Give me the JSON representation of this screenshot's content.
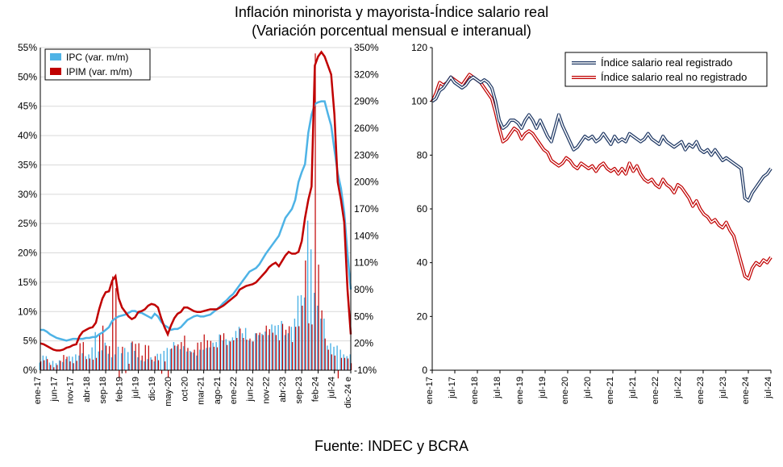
{
  "title_line1": "Inflación minorista y mayorista-Índice salario real",
  "title_line2": "(Variación porcentual mensual e interanual)",
  "source": "Fuente: INDEC y BCRA",
  "left_chart": {
    "type": "combo-bar-line-dual-axis",
    "background_color": "#ffffff",
    "grid_color": "#d9d9d9",
    "axis_color": "#000000",
    "y_left": {
      "min": 0,
      "max": 55,
      "step": 5,
      "suffix": "%",
      "label_fontsize": 12
    },
    "y_right": {
      "min": -10,
      "max": 350,
      "step": 30,
      "suffix": "%",
      "label_fontsize": 12
    },
    "x_labels": [
      "ene-17",
      "jun-17",
      "nov-17",
      "abr-18",
      "sep-18",
      "feb-19",
      "jul-19",
      "dic-19",
      "may-20",
      "oct-20",
      "mar-21",
      "ago-21",
      "ene-22",
      "jun-22",
      "nov-22",
      "abr-23",
      "sep-23",
      "feb-24",
      "jul-24",
      "dic-24 e"
    ],
    "legend": {
      "ipc": "IPC (var. m/m)",
      "ipim": "IPIM (var. m/m)"
    },
    "colors": {
      "ipc_bar": "#4eb3e6",
      "ipim_bar": "#c00000",
      "ipc_line": "#4eb3e6",
      "ipim_line": "#c00000"
    },
    "line_width": 2.5,
    "bar_width_ratio": 0.35,
    "ipc_mm": [
      1.3,
      2.5,
      2.4,
      1.3,
      1.6,
      1.2,
      1.7,
      1.4,
      1.9,
      2.4,
      2.3,
      2.7,
      2.5,
      2.9,
      2.4,
      2.7,
      3.9,
      6.5,
      3.2,
      3.4,
      4.7,
      2.8,
      2.2,
      2.7,
      4.0,
      2.9,
      3.8,
      3.1,
      4.7,
      3.3,
      2.2,
      1.7,
      1.5,
      1.9,
      2.2,
      1.5,
      2.8,
      2.8,
      3.3,
      3.8,
      3.6,
      4.8,
      4.1,
      3.6,
      4.1,
      3.2,
      3.3,
      3.0,
      2.5,
      3.5,
      3.5,
      3.8,
      3.9,
      4.7,
      4.8,
      6.1,
      5.1,
      5.3,
      5.0,
      5.6,
      6.7,
      7.4,
      6.3,
      7.2,
      5.1,
      4.9,
      6.3,
      6.0,
      6.2,
      6.6,
      6.0,
      7.8,
      7.6,
      7.7,
      8.4,
      6.0,
      6.3,
      7.4,
      8.8,
      12.7,
      12.8,
      12.4,
      25.5,
      20.6,
      13.2,
      11.0,
      8.8,
      8.8,
      4.2,
      4.6,
      4.0,
      4.2,
      3.5,
      2.7,
      2.4,
      2.7
    ],
    "ipim_mm": [
      1.5,
      1.7,
      1.9,
      0.9,
      0.5,
      0.9,
      1.6,
      2.6,
      2.3,
      1.5,
      1.2,
      1.6,
      4.6,
      4.8,
      1.9,
      2.0,
      1.8,
      2.1,
      6.2,
      7.6,
      4.2,
      4.1,
      16.0,
      14.0,
      -1.3,
      4.0,
      -0.5,
      1.1,
      4.9,
      4.5,
      4.6,
      2.5,
      4.3,
      4.2,
      1.8,
      2.4,
      1.7,
      -0.6,
      1.5,
      -1.3,
      3.7,
      4.2,
      4.4,
      4.8,
      5.9,
      3.8,
      3.1,
      3.5,
      4.7,
      4.8,
      6.1,
      5.1,
      5.0,
      4.0,
      3.9,
      6.0,
      6.3,
      4.3,
      4.9,
      5.1,
      5.5,
      7.1,
      5.5,
      5.2,
      5.4,
      4.9,
      6.3,
      6.4,
      6.0,
      7.6,
      7.0,
      6.4,
      6.0,
      5.1,
      7.9,
      6.9,
      7.5,
      4.8,
      7.4,
      7.5,
      11.0,
      18.7,
      8.0,
      7.8,
      54.0,
      18.0,
      10.2,
      5.4,
      3.5,
      2.7,
      2.5,
      -1.4,
      2.1,
      2.1,
      2.0,
      1.2
    ],
    "ipc_yy": [
      35,
      35,
      33,
      30,
      28,
      26,
      25,
      24,
      23,
      24,
      25,
      25,
      25,
      25,
      26,
      26,
      27,
      27,
      30,
      32,
      35,
      38,
      45,
      48,
      50,
      51,
      52,
      54,
      56,
      56,
      54,
      54,
      52,
      50,
      48,
      53,
      50,
      44,
      40,
      38,
      35,
      36,
      36,
      38,
      42,
      46,
      48,
      50,
      51,
      50,
      50,
      51,
      52,
      55,
      58,
      61,
      65,
      68,
      72,
      75,
      80,
      85,
      90,
      95,
      100,
      102,
      104,
      108,
      114,
      120,
      125,
      130,
      135,
      140,
      150,
      160,
      165,
      170,
      180,
      200,
      211,
      220,
      255,
      275,
      287,
      289,
      290,
      290,
      276,
      263,
      236,
      210,
      193,
      166,
      120,
      80
    ],
    "ipim_yy": [
      20,
      19,
      17,
      15,
      13,
      12,
      12,
      13,
      15,
      16,
      18,
      19,
      28,
      33,
      35,
      37,
      38,
      43,
      58,
      70,
      77,
      78,
      90,
      95,
      70,
      60,
      55,
      50,
      47,
      49,
      55,
      56,
      58,
      62,
      64,
      63,
      60,
      48,
      38,
      30,
      40,
      48,
      53,
      55,
      60,
      60,
      58,
      56,
      55,
      55,
      56,
      57,
      58,
      58,
      58,
      60,
      62,
      65,
      68,
      71,
      74,
      80,
      82,
      84,
      85,
      86,
      88,
      92,
      96,
      100,
      105,
      108,
      110,
      106,
      112,
      118,
      122,
      120,
      120,
      122,
      134,
      160,
      180,
      195,
      330,
      340,
      345,
      340,
      330,
      320,
      275,
      200,
      180,
      155,
      80,
      30
    ]
  },
  "right_chart": {
    "type": "line",
    "background_color": "#ffffff",
    "grid_color": "#ffffff",
    "axis_color": "#000000",
    "y": {
      "min": 0,
      "max": 120,
      "step": 20,
      "label_fontsize": 12
    },
    "x_labels": [
      "ene-17",
      "jul-17",
      "ene-18",
      "jul-18",
      "ene-19",
      "jul-19",
      "ene-20",
      "jul-20",
      "ene-21",
      "jul-21",
      "ene-22",
      "jul-22",
      "ene-23",
      "jul-23",
      "ene-24",
      "jul-24"
    ],
    "legend": {
      "reg": "Índice salario real registrado",
      "noreg": "Índice salario real no registrado"
    },
    "colors": {
      "reg_outer": "#1f3864",
      "reg_inner": "#ffffff",
      "noreg_outer": "#c00000",
      "noreg_inner": "#ffffff"
    },
    "line_width_outer": 4,
    "line_width_inner": 1.5,
    "reg": [
      100,
      101,
      104,
      105,
      107,
      109,
      107,
      106,
      105,
      106,
      108,
      109,
      108,
      107,
      108,
      107,
      105,
      100,
      93,
      90,
      91,
      93,
      93,
      92,
      90,
      93,
      95,
      93,
      90,
      93,
      90,
      87,
      85,
      90,
      95,
      91,
      88,
      85,
      82,
      83,
      85,
      87,
      86,
      87,
      85,
      86,
      88,
      86,
      84,
      87,
      85,
      86,
      85,
      88,
      87,
      86,
      85,
      86,
      88,
      86,
      85,
      84,
      87,
      85,
      84,
      83,
      84,
      85,
      82,
      84,
      83,
      85,
      82,
      81,
      82,
      80,
      82,
      80,
      78,
      79,
      78,
      77,
      76,
      75,
      64,
      63,
      66,
      68,
      70,
      72,
      73,
      75
    ],
    "noreg": [
      100,
      103,
      107,
      106,
      107,
      109,
      108,
      107,
      106,
      108,
      110,
      109,
      108,
      107,
      105,
      103,
      101,
      96,
      90,
      85,
      86,
      88,
      90,
      89,
      86,
      88,
      89,
      88,
      86,
      84,
      82,
      81,
      78,
      77,
      76,
      77,
      79,
      78,
      76,
      75,
      77,
      76,
      75,
      76,
      74,
      76,
      77,
      75,
      74,
      75,
      73,
      75,
      73,
      77,
      74,
      76,
      73,
      71,
      70,
      71,
      69,
      68,
      71,
      69,
      68,
      66,
      69,
      68,
      66,
      64,
      61,
      63,
      60,
      58,
      57,
      55,
      56,
      54,
      53,
      55,
      52,
      50,
      45,
      40,
      35,
      34,
      38,
      40,
      39,
      41,
      40,
      42
    ]
  }
}
